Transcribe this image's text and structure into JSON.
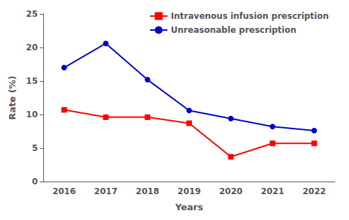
{
  "chart_data": {
    "type": "line",
    "categories": [
      "2016",
      "2017",
      "2018",
      "2019",
      "2020",
      "2021",
      "2022"
    ],
    "series": [
      {
        "name": "Intravenous infusion prescription",
        "color": "#FF0000",
        "marker": "square",
        "values": [
          10.7,
          9.6,
          9.6,
          8.7,
          3.7,
          5.7,
          5.7
        ]
      },
      {
        "name": "Unreasonable prescription",
        "color": "#0000CC",
        "marker": "circle",
        "values": [
          17.0,
          20.6,
          15.2,
          10.6,
          9.4,
          8.2,
          7.6
        ]
      }
    ],
    "xlabel": "Years",
    "ylabel": "Rate (%)",
    "ylim": [
      0,
      25
    ],
    "yticks": [
      0,
      5,
      10,
      15,
      20,
      25
    ],
    "grid": false,
    "legend": "upper right"
  }
}
